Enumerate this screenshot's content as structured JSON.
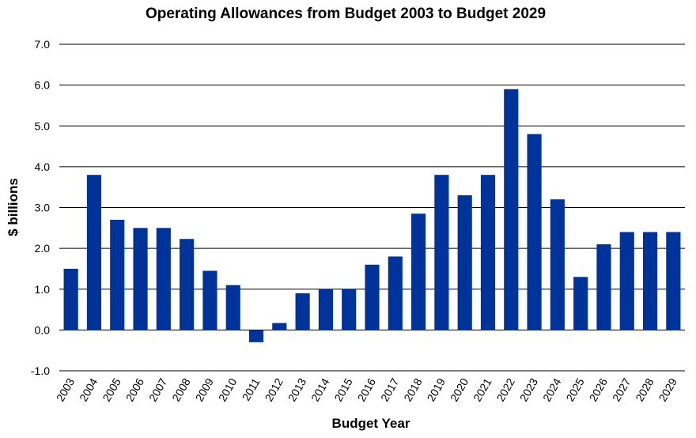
{
  "chart_data": {
    "type": "bar",
    "title": "Operating Allowances from Budget 2003 to Budget 2029",
    "xlabel": "Budget Year",
    "ylabel": "$ billions",
    "ylim": [
      -1.0,
      7.0
    ],
    "yticks": [
      "7.0",
      "6.0",
      "5.0",
      "4.0",
      "3.0",
      "2.0",
      "1.0",
      "0.0",
      "-1.0"
    ],
    "ytick_values": [
      7,
      6,
      5,
      4,
      3,
      2,
      1,
      0,
      -1
    ],
    "grid": true,
    "legend": "none",
    "bar_color": "#003399",
    "categories": [
      "2003",
      "2004",
      "2005",
      "2006",
      "2007",
      "2008",
      "2009",
      "2010",
      "2011",
      "2012",
      "2013",
      "2014",
      "2015",
      "2016",
      "2017",
      "2018",
      "2019",
      "2020",
      "2021",
      "2022",
      "2023",
      "2024",
      "2025",
      "2026",
      "2027",
      "2028",
      "2029"
    ],
    "values": [
      1.5,
      3.8,
      2.7,
      2.5,
      2.5,
      2.23,
      1.45,
      1.1,
      -0.3,
      0.17,
      0.9,
      1.0,
      1.0,
      1.6,
      1.8,
      2.85,
      3.8,
      3.3,
      3.8,
      5.9,
      4.8,
      3.2,
      1.3,
      2.1,
      2.4,
      2.4,
      2.4
    ]
  }
}
